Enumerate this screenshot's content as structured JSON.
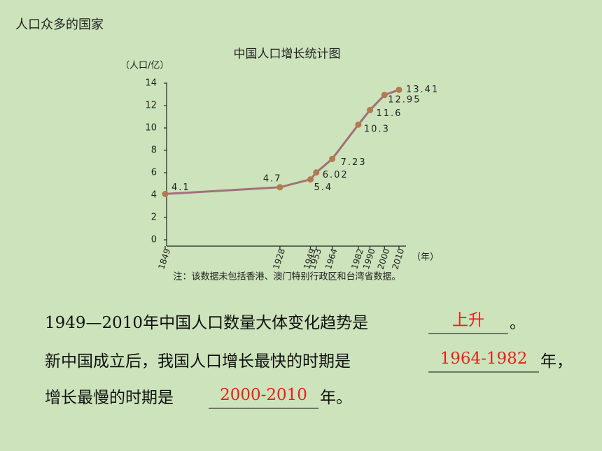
{
  "header": {
    "title": "人口众多的国家"
  },
  "chart_data": {
    "type": "line",
    "title": "中国人口增长统计图",
    "y_label": "（人口/亿）",
    "x_label": "（年）",
    "note": "注：该数据未包括香港、澳门特别行政区和台湾省数据。",
    "x": [
      1849,
      1928,
      1949,
      1953,
      1964,
      1982,
      1990,
      2000,
      2010
    ],
    "series": [
      {
        "name": "中国人口",
        "color": "#a2707a",
        "marker_color": "#b27a4e",
        "values": [
          4.1,
          4.7,
          5.4,
          6.02,
          7.23,
          10.3,
          11.6,
          12.95,
          13.41
        ]
      }
    ],
    "xlim": [
      1849,
      2010
    ],
    "xticks": [
      1849,
      1928,
      1949,
      1953,
      1964,
      1982,
      1990,
      2000,
      2010
    ],
    "ylim": [
      0,
      14
    ],
    "yticks": [
      0,
      2,
      4,
      6,
      8,
      10,
      12,
      14
    ],
    "grid": false
  },
  "questions": [
    {
      "text": "1949—2010年中国人口数量大体变化趋势是",
      "answer": "上升",
      "end": "。"
    },
    {
      "text": "新中国成立后，我国人口增长最快的时期是",
      "answer": "1964-1982",
      "end": "年，"
    },
    {
      "text": "增长最慢的时期是",
      "answer": "2000-2010",
      "end": "年。"
    }
  ]
}
